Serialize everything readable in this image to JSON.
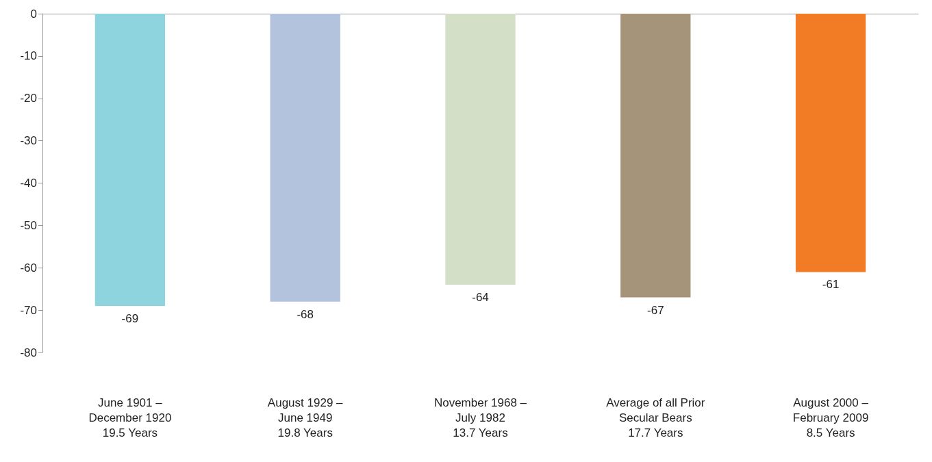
{
  "chart_data": {
    "type": "bar",
    "categories": [
      "June 1901 –\nDecember 1920\n19.5 Years",
      "August 1929 –\nJune 1949\n19.8 Years",
      "November 1968 –\nJuly 1982\n13.7 Years",
      "Average of all Prior\nSecular Bears\n17.7 Years",
      "August 2000 –\nFebruary 2009\n8.5 Years"
    ],
    "values": [
      -69,
      -68,
      -64,
      -67,
      -61
    ],
    "colors": [
      "#8dd4de",
      "#b3c3de",
      "#d3dfc7",
      "#a6947a",
      "#f27b26"
    ],
    "ylim": [
      -80,
      0
    ],
    "yticks": [
      -80,
      -70,
      -60,
      -50,
      -40,
      -30,
      -20,
      -10,
      0
    ],
    "data_labels": true
  }
}
